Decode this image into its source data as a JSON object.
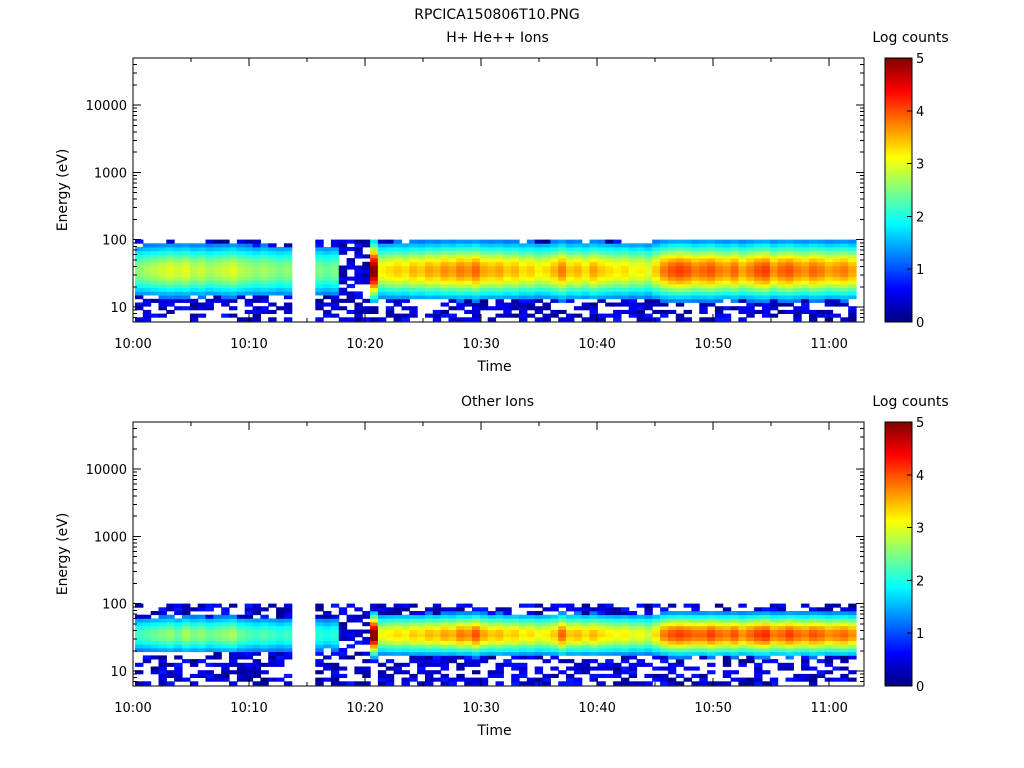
{
  "figure_title": "RPCICA150806T10.PNG",
  "colors": {
    "colormap": [
      "#00007f",
      "#0000ff",
      "#0080ff",
      "#00ffff",
      "#80ff80",
      "#ffff00",
      "#ff8000",
      "#ff0000",
      "#7f0000"
    ],
    "background": "#ffffff",
    "axes": "#000000"
  },
  "chart_data": [
    {
      "type": "heatmap",
      "title": "H+ He++ Ions",
      "xlabel": "Time",
      "ylabel": "Energy (eV)",
      "x_range": [
        "10:00",
        "11:03"
      ],
      "x_ticks": [
        "10:00",
        "10:10",
        "10:20",
        "10:30",
        "10:40",
        "10:50",
        "11:00"
      ],
      "y_scale": "log",
      "y_range": [
        6,
        50000
      ],
      "y_ticks": [
        "10",
        "100",
        "1000",
        "10000"
      ],
      "data_gap": [
        "10:14",
        "10:15"
      ],
      "band_center_log_counts": [
        2.6,
        2.7,
        2.8,
        2.9,
        3.0,
        2.9,
        3.0,
        2.8,
        2.9,
        2.7,
        2.8,
        2.9,
        3.0,
        2.8,
        2.7,
        2.6,
        2.7,
        2.6,
        2.5,
        2.6,
        2.5,
        2.6,
        2.4,
        2.5,
        2.4,
        2.5,
        0.0,
        0.0,
        0.0,
        0.0,
        4.9,
        3.2,
        3.3,
        3.4,
        3.3,
        3.5,
        3.4,
        3.6,
        3.5,
        3.7,
        3.6,
        3.8,
        3.7,
        3.9,
        3.6,
        3.5,
        3.6,
        3.4,
        3.5,
        3.3,
        3.4,
        3.2,
        3.3,
        3.5,
        3.8,
        3.4,
        3.5,
        3.3,
        3.6,
        3.4,
        3.3,
        3.2,
        3.3,
        3.1,
        3.2,
        3.0,
        3.4,
        3.8,
        4.0,
        4.1,
        4.0,
        3.8,
        3.9,
        4.0,
        3.8,
        3.7,
        3.9,
        3.6,
        3.8,
        4.0,
        4.1,
        3.7,
        3.9,
        4.0,
        3.8,
        3.7,
        3.9,
        3.8,
        3.6,
        3.7,
        3.8,
        3.6
      ],
      "colorbar": {
        "label": "Log counts",
        "min": 0,
        "max": 5,
        "ticks": [
          "0",
          "1",
          "2",
          "3",
          "4",
          "5"
        ]
      }
    },
    {
      "type": "heatmap",
      "title": "Other Ions",
      "xlabel": "Time",
      "ylabel": "Energy (eV)",
      "x_range": [
        "10:00",
        "11:03"
      ],
      "x_ticks": [
        "10:00",
        "10:10",
        "10:20",
        "10:30",
        "10:40",
        "10:50",
        "11:00"
      ],
      "y_scale": "log",
      "y_range": [
        6,
        50000
      ],
      "y_ticks": [
        "10",
        "100",
        "1000",
        "10000"
      ],
      "data_gap": [
        "10:14",
        "10:15"
      ],
      "band_center_log_counts": [
        2.2,
        2.3,
        2.4,
        2.5,
        2.6,
        2.4,
        2.7,
        2.5,
        2.6,
        2.4,
        2.5,
        2.6,
        2.7,
        2.4,
        2.3,
        2.2,
        2.3,
        2.2,
        2.1,
        2.2,
        2.1,
        2.2,
        2.0,
        2.1,
        2.0,
        2.1,
        0.0,
        0.0,
        0.0,
        0.0,
        4.9,
        3.1,
        3.2,
        3.3,
        3.2,
        3.4,
        3.3,
        3.5,
        3.4,
        3.6,
        3.5,
        3.8,
        3.7,
        4.0,
        3.6,
        3.4,
        3.5,
        3.3,
        3.4,
        3.2,
        3.3,
        3.1,
        3.2,
        3.4,
        3.9,
        3.4,
        3.5,
        3.3,
        3.5,
        3.3,
        3.2,
        3.1,
        3.2,
        3.0,
        3.1,
        2.9,
        3.3,
        3.8,
        4.0,
        4.1,
        4.0,
        3.9,
        3.9,
        4.1,
        3.9,
        3.8,
        4.0,
        3.7,
        3.9,
        4.1,
        4.2,
        3.8,
        3.9,
        4.1,
        3.9,
        3.8,
        4.0,
        3.9,
        3.7,
        3.8,
        3.9,
        3.7
      ],
      "colorbar": {
        "label": "Log counts",
        "min": 0,
        "max": 5,
        "ticks": [
          "0",
          "1",
          "2",
          "3",
          "4",
          "5"
        ]
      }
    }
  ]
}
